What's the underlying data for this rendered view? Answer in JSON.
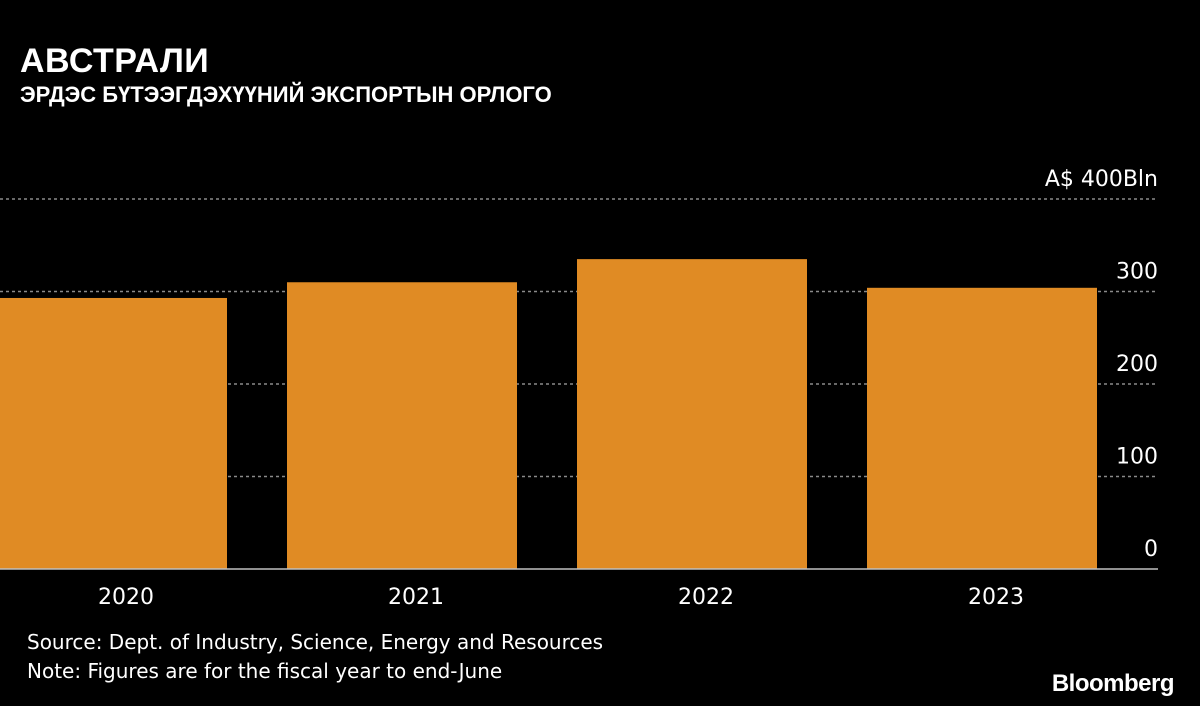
{
  "header": {
    "title": "АВСТРАЛИ",
    "subtitle": "ЭРДЭС БҮТЭЭГДЭХҮҮНИЙ ЭКСПОРТЫН ОРЛОГО"
  },
  "chart_data": {
    "type": "bar",
    "categories": [
      "2020",
      "2021",
      "2022",
      "2023"
    ],
    "values": [
      293,
      310,
      335,
      304
    ],
    "ylim": [
      0,
      400
    ],
    "yticks": [
      0,
      100,
      200,
      300,
      400
    ],
    "ytick_labels": [
      "0",
      "100",
      "200",
      "300",
      "A$ 400Bln"
    ],
    "grid": true,
    "bar_color": "#E08B24",
    "grid_color": "#8a8a8a"
  },
  "footer": {
    "source": "Source: Dept. of Industry, Science, Energy and Resources",
    "note": "Note: Figures are for the fiscal year to end-June",
    "brand": "Bloomberg"
  }
}
